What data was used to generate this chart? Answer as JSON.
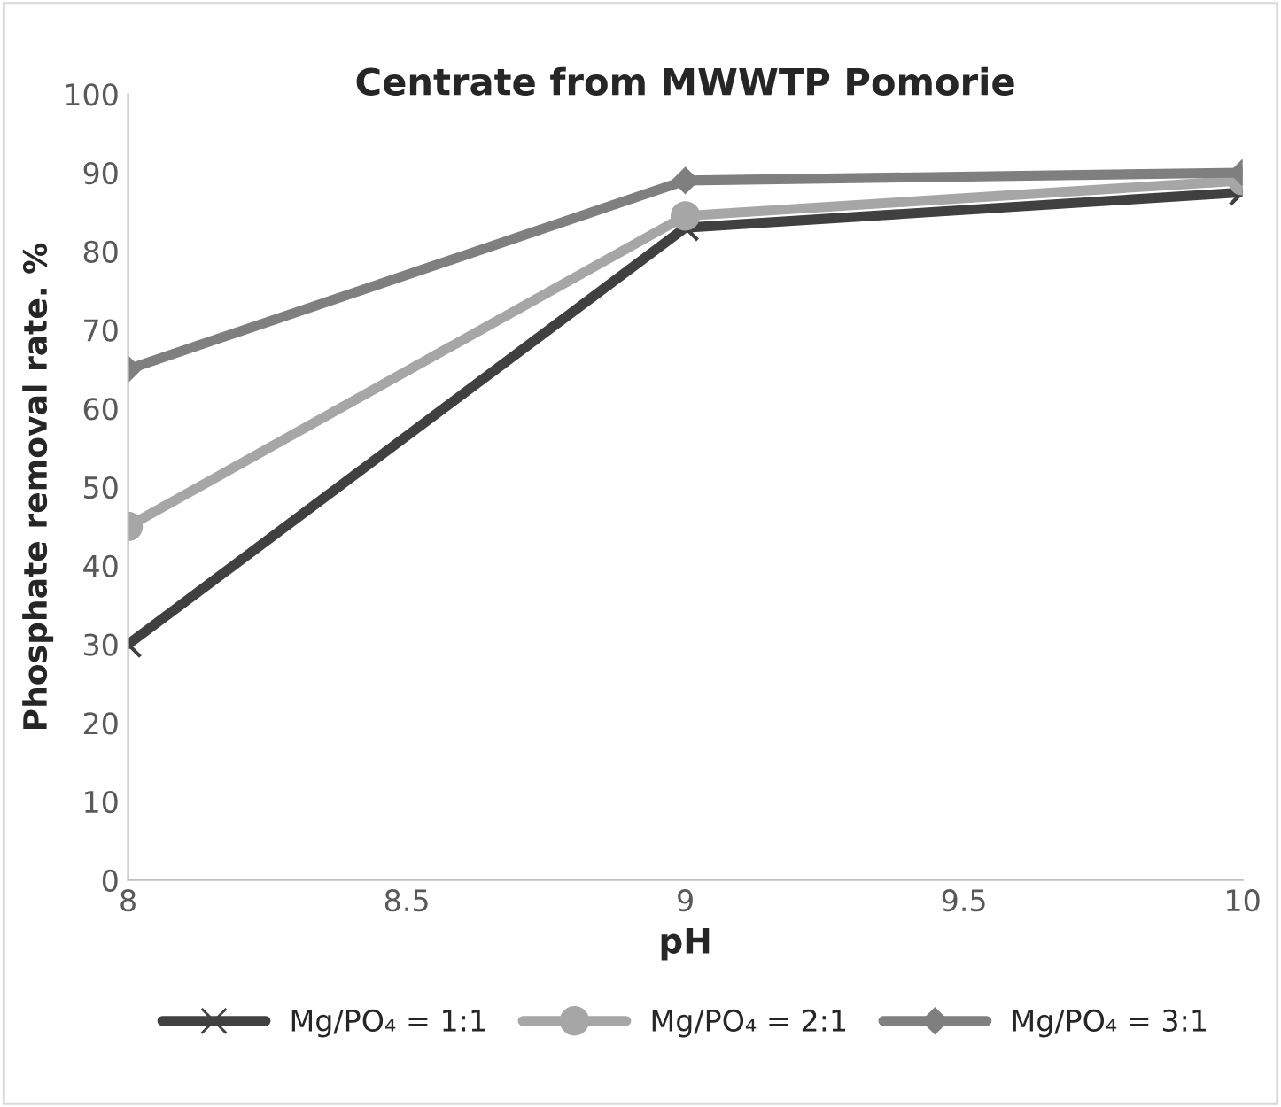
{
  "chart_data": {
    "type": "line",
    "title": "Centrate from MWWTP Pomorie",
    "xlabel": "pH",
    "ylabel": "Phosphate removal rate. %",
    "x": [
      8,
      9,
      10
    ],
    "series": [
      {
        "name": "Mg/PO₄ = 1:1",
        "color": "#404040",
        "marker": "cross",
        "values": [
          30,
          83,
          87.5
        ]
      },
      {
        "name": "Mg/PO₄ = 2:1",
        "color": "#a6a6a6",
        "marker": "circle",
        "values": [
          45,
          84.5,
          89
        ]
      },
      {
        "name": "Mg/PO₄ = 3:1",
        "color": "#7f7f7f",
        "marker": "diamond",
        "values": [
          65,
          89,
          90
        ]
      }
    ],
    "xlim": [
      8,
      10
    ],
    "xticks": [
      8,
      8.5,
      9,
      9.5,
      10
    ],
    "ylim": [
      0,
      100
    ],
    "yticks": [
      0,
      10,
      20,
      30,
      40,
      50,
      60,
      70,
      80,
      90,
      100
    ],
    "grid": false,
    "legend": "bottom",
    "line_style": "solid"
  }
}
